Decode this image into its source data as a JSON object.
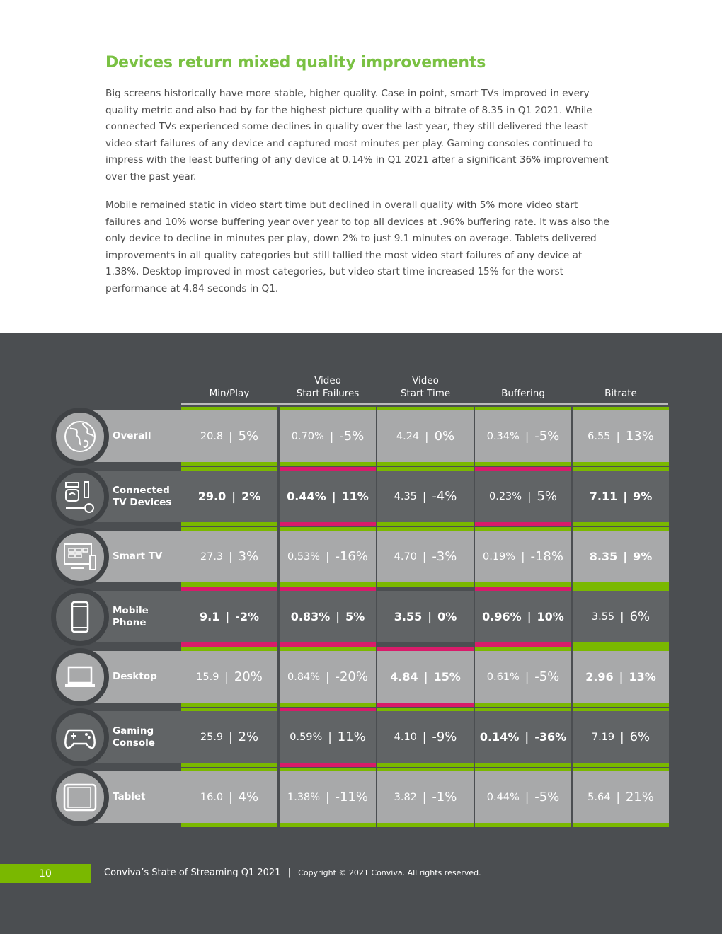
{
  "title": "Devices return mixed quality improvements",
  "paragraphs": [
    "Big screens historically have more stable, higher quality. Case in point, smart TVs improved in every quality metric and also had by far the highest picture quality with a bitrate of 8.35 in Q1 2021. While connected TVs experienced some declines in quality over the last year, they still delivered the least video start failures of any device and captured most minutes per play. Gaming consoles continued to impress with the least buffering of any device at 0.14% in Q1 2021 after a significant 36% improvement over the past year.",
    "Mobile remained static in video start time but declined in overall quality with 5% more video start failures and 10% worse buffering year over year to top all devices at .96% buffering rate. It was also the only device to decline in minutes per play, down 2% to just 9.1 minutes on average. Tablets delivered improvements in all quality categories but still tallied the most video start failures of any device at 1.38%. Desktop improved in most categories, but video start time increased 15% for the worst performance at 4.84 seconds in Q1."
  ],
  "colors": {
    "green": "#7ab800",
    "pink": "#d81b6a",
    "light_cell": "#a8a9aa",
    "dark_cell": "#616466",
    "background": "#4b4e51"
  },
  "columns": [
    "Min/Play",
    "Video\nStart Failures",
    "Video\nStart Time",
    "Buffering",
    "Bitrate"
  ],
  "rows": [
    {
      "label": "Overall",
      "icon": "globe-icon",
      "shade": "light",
      "cells": [
        {
          "value": "20.8",
          "change": "5%",
          "bold": false,
          "bar": "green"
        },
        {
          "value": "0.70%",
          "change": "-5%",
          "bold": false,
          "bar": "green"
        },
        {
          "value": "4.24",
          "change": "0%",
          "bold": false,
          "bar": "green"
        },
        {
          "value": "0.34%",
          "change": "-5%",
          "bold": false,
          "bar": "green"
        },
        {
          "value": "6.55",
          "change": "13%",
          "bold": false,
          "bar": "green"
        }
      ]
    },
    {
      "label": "Connected\nTV Devices",
      "icon": "connected-tv-devices-icon",
      "shade": "dark",
      "cells": [
        {
          "value": "29.0",
          "change": "2%",
          "bold": true,
          "bar": "green"
        },
        {
          "value": "0.44%",
          "change": "11%",
          "bold": true,
          "bar": "pink"
        },
        {
          "value": "4.35",
          "change": "-4%",
          "bold": false,
          "bar": "green"
        },
        {
          "value": "0.23%",
          "change": "5%",
          "bold": false,
          "bar": "pink"
        },
        {
          "value": "7.11",
          "change": "9%",
          "bold": true,
          "bar": "green"
        }
      ]
    },
    {
      "label": "Smart TV",
      "icon": "smart-tv-icon",
      "shade": "light",
      "cells": [
        {
          "value": "27.3",
          "change": "3%",
          "bold": false,
          "bar": "green"
        },
        {
          "value": "0.53%",
          "change": "-16%",
          "bold": false,
          "bar": "green"
        },
        {
          "value": "4.70",
          "change": "-3%",
          "bold": false,
          "bar": "green"
        },
        {
          "value": "0.19%",
          "change": "-18%",
          "bold": false,
          "bar": "green"
        },
        {
          "value": "8.35",
          "change": "9%",
          "bold": true,
          "bar": "green"
        }
      ]
    },
    {
      "label": "Mobile\nPhone",
      "icon": "mobile-phone-icon",
      "shade": "dark",
      "cells": [
        {
          "value": "9.1",
          "change": "-2%",
          "bold": true,
          "bar": "pink"
        },
        {
          "value": "0.83%",
          "change": "5%",
          "bold": true,
          "bar": "pink"
        },
        {
          "value": "3.55",
          "change": "0%",
          "bold": true,
          "bar": "none"
        },
        {
          "value": "0.96%",
          "change": "10%",
          "bold": true,
          "bar": "pink"
        },
        {
          "value": "3.55",
          "change": "6%",
          "bold": false,
          "bar": "green"
        }
      ]
    },
    {
      "label": "Desktop",
      "icon": "laptop-icon",
      "shade": "light",
      "cells": [
        {
          "value": "15.9",
          "change": "20%",
          "bold": false,
          "bar": "green"
        },
        {
          "value": "0.84%",
          "change": "-20%",
          "bold": false,
          "bar": "green"
        },
        {
          "value": "4.84",
          "change": "15%",
          "bold": true,
          "bar": "pink"
        },
        {
          "value": "0.61%",
          "change": "-5%",
          "bold": false,
          "bar": "green"
        },
        {
          "value": "2.96",
          "change": "13%",
          "bold": true,
          "bar": "green"
        }
      ]
    },
    {
      "label": "Gaming\nConsole",
      "icon": "gamepad-icon",
      "shade": "dark",
      "cells": [
        {
          "value": "25.9",
          "change": "2%",
          "bold": false,
          "bar": "green"
        },
        {
          "value": "0.59%",
          "change": "11%",
          "bold": false,
          "bar": "pink"
        },
        {
          "value": "4.10",
          "change": "-9%",
          "bold": false,
          "bar": "green"
        },
        {
          "value": "0.14%",
          "change": "-36%",
          "bold": true,
          "bar": "green"
        },
        {
          "value": "7.19",
          "change": "6%",
          "bold": false,
          "bar": "green"
        }
      ]
    },
    {
      "label": "Tablet",
      "icon": "tablet-icon",
      "shade": "light",
      "cells": [
        {
          "value": "16.0",
          "change": "4%",
          "bold": false,
          "bar": "green"
        },
        {
          "value": "1.38%",
          "change": "-11%",
          "bold": false,
          "bar": "green"
        },
        {
          "value": "3.82",
          "change": "-1%",
          "bold": false,
          "bar": "green"
        },
        {
          "value": "0.44%",
          "change": "-5%",
          "bold": false,
          "bar": "green"
        },
        {
          "value": "5.64",
          "change": "21%",
          "bold": false,
          "bar": "green"
        }
      ]
    }
  ],
  "footer": {
    "page": "10",
    "title": "Conviva’s State of Streaming Q1 2021",
    "separator": "|",
    "copyright": "Copyright © 2021 Conviva. All rights reserved."
  }
}
